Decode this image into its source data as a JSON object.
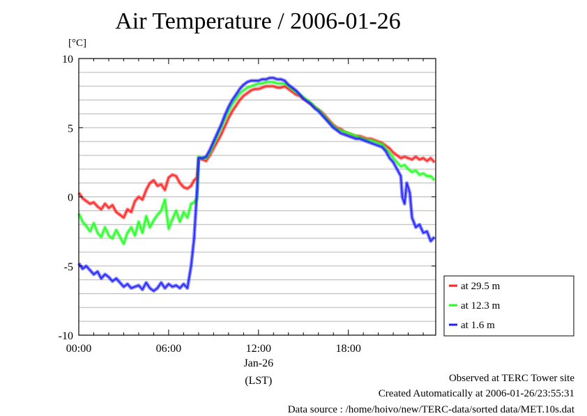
{
  "chart_data": {
    "type": "line",
    "title": "Air Temperature / 2006-01-26",
    "ylabel": "[°C]",
    "ylim": [
      -10,
      10
    ],
    "yticks": [
      10,
      5,
      0,
      -5,
      -10
    ],
    "xlim": [
      0,
      23.833
    ],
    "xticks": [
      {
        "value": 0,
        "label": "00:00"
      },
      {
        "value": 6,
        "label": "06:00"
      },
      {
        "value": 12,
        "label": "12:00"
      },
      {
        "value": 18,
        "label": "18:00"
      }
    ],
    "x_date_label": "Jan-26",
    "x_axis_label": "(LST)",
    "x_unit": "hour of day",
    "grid": true,
    "legend_position": "right",
    "series": [
      {
        "name": "at 29.5 m",
        "color": "#ff2020",
        "x": [
          0,
          0.25,
          0.5,
          0.75,
          1,
          1.25,
          1.5,
          1.75,
          2,
          2.25,
          2.5,
          2.75,
          3,
          3.25,
          3.5,
          3.75,
          4,
          4.25,
          4.5,
          4.75,
          5,
          5.25,
          5.5,
          5.75,
          6,
          6.25,
          6.5,
          6.75,
          7,
          7.25,
          7.5,
          7.7,
          7.9,
          8,
          8.25,
          8.5,
          8.75,
          9,
          9.25,
          9.5,
          9.75,
          10,
          10.25,
          10.5,
          10.75,
          11,
          11.25,
          11.5,
          11.75,
          12,
          12.25,
          12.5,
          12.75,
          13,
          13.25,
          13.5,
          13.75,
          14,
          14.25,
          14.5,
          14.75,
          15,
          15.25,
          15.5,
          15.75,
          16,
          16.25,
          16.5,
          16.75,
          17,
          17.25,
          17.5,
          17.75,
          18,
          18.25,
          18.5,
          18.75,
          19,
          19.25,
          19.5,
          19.75,
          20,
          20.25,
          20.5,
          20.75,
          21,
          21.25,
          21.5,
          21.75,
          22,
          22.25,
          22.5,
          22.75,
          23,
          23.25,
          23.5,
          23.75
        ],
        "values": [
          0.3,
          -0.1,
          -0.3,
          -0.5,
          -0.4,
          -0.7,
          -0.9,
          -0.5,
          -0.8,
          -0.6,
          -1.1,
          -1.3,
          -1.5,
          -0.9,
          -1.1,
          -0.3,
          0.0,
          -0.2,
          0.5,
          1.0,
          1.2,
          0.8,
          0.9,
          0.5,
          1.4,
          1.6,
          1.5,
          1.0,
          0.7,
          0.6,
          0.8,
          1.2,
          1.4,
          2.8,
          2.7,
          2.6,
          3.0,
          3.5,
          4.0,
          4.5,
          5.1,
          5.7,
          6.2,
          6.6,
          7.0,
          7.3,
          7.5,
          7.7,
          7.8,
          7.8,
          7.9,
          8.0,
          8.0,
          8.0,
          7.9,
          7.9,
          8.0,
          7.8,
          7.6,
          7.4,
          7.3,
          7.1,
          6.9,
          6.7,
          6.5,
          6.3,
          6.1,
          5.8,
          5.5,
          5.2,
          5.0,
          4.9,
          4.7,
          4.6,
          4.5,
          4.4,
          4.4,
          4.3,
          4.2,
          4.2,
          4.1,
          4.0,
          3.9,
          3.7,
          3.5,
          3.2,
          3.0,
          2.8,
          2.9,
          2.8,
          2.7,
          2.9,
          2.7,
          2.8,
          2.6,
          2.8,
          2.5
        ]
      },
      {
        "name": "at 12.3 m",
        "color": "#20ff20",
        "x": [
          0,
          0.25,
          0.5,
          0.75,
          1,
          1.25,
          1.5,
          1.75,
          2,
          2.25,
          2.5,
          2.75,
          3,
          3.25,
          3.5,
          3.75,
          4,
          4.25,
          4.5,
          4.75,
          5,
          5.25,
          5.5,
          5.75,
          6,
          6.25,
          6.5,
          6.75,
          7,
          7.25,
          7.5,
          7.7,
          7.9,
          8,
          8.25,
          8.5,
          8.75,
          9,
          9.25,
          9.5,
          9.75,
          10,
          10.25,
          10.5,
          10.75,
          11,
          11.25,
          11.5,
          11.75,
          12,
          12.25,
          12.5,
          12.75,
          13,
          13.25,
          13.5,
          13.75,
          14,
          14.25,
          14.5,
          14.75,
          15,
          15.25,
          15.5,
          15.75,
          16,
          16.25,
          16.5,
          16.75,
          17,
          17.25,
          17.5,
          17.75,
          18,
          18.25,
          18.5,
          18.75,
          19,
          19.25,
          19.5,
          19.75,
          20,
          20.25,
          20.5,
          20.75,
          21,
          21.25,
          21.5,
          21.75,
          22,
          22.25,
          22.5,
          22.75,
          23,
          23.25,
          23.5,
          23.75
        ],
        "values": [
          -1.2,
          -1.8,
          -2.1,
          -2.5,
          -1.9,
          -2.6,
          -2.9,
          -2.2,
          -2.8,
          -3.0,
          -2.4,
          -2.9,
          -3.4,
          -2.6,
          -2.2,
          -2.8,
          -1.8,
          -2.6,
          -1.4,
          -2.2,
          -1.7,
          -1.3,
          -1.0,
          -0.2,
          -2.3,
          -1.6,
          -1.0,
          -1.8,
          -1.1,
          -1.5,
          -0.5,
          -0.4,
          -0.1,
          2.9,
          2.8,
          2.8,
          3.2,
          3.8,
          4.4,
          5.0,
          5.6,
          6.2,
          6.7,
          7.1,
          7.5,
          7.7,
          7.9,
          8.0,
          8.1,
          8.2,
          8.2,
          8.3,
          8.3,
          8.3,
          8.2,
          8.2,
          8.2,
          8.0,
          7.8,
          7.6,
          7.4,
          7.2,
          7.0,
          6.8,
          6.5,
          6.3,
          6.0,
          5.7,
          5.4,
          5.1,
          4.9,
          4.8,
          4.7,
          4.6,
          4.5,
          4.4,
          4.3,
          4.2,
          4.1,
          4.1,
          4.0,
          3.9,
          3.8,
          3.5,
          3.2,
          2.8,
          2.5,
          2.2,
          2.3,
          2.0,
          1.8,
          1.9,
          1.6,
          1.7,
          1.5,
          1.5,
          1.2
        ]
      },
      {
        "name": "at 1.6 m",
        "color": "#2020ff",
        "x": [
          0,
          0.25,
          0.5,
          0.75,
          1,
          1.25,
          1.5,
          1.75,
          2,
          2.25,
          2.5,
          2.75,
          3,
          3.25,
          3.5,
          3.75,
          4,
          4.25,
          4.5,
          4.75,
          5,
          5.25,
          5.5,
          5.75,
          6,
          6.25,
          6.5,
          6.75,
          7,
          7.25,
          7.5,
          7.7,
          7.9,
          8,
          8.25,
          8.5,
          8.75,
          9,
          9.25,
          9.5,
          9.75,
          10,
          10.25,
          10.5,
          10.75,
          11,
          11.25,
          11.5,
          11.75,
          12,
          12.25,
          12.5,
          12.75,
          13,
          13.25,
          13.5,
          13.75,
          14,
          14.25,
          14.5,
          14.75,
          15,
          15.25,
          15.5,
          15.75,
          16,
          16.25,
          16.5,
          16.75,
          17,
          17.25,
          17.5,
          17.75,
          18,
          18.25,
          18.5,
          18.75,
          19,
          19.25,
          19.5,
          19.75,
          20,
          20.25,
          20.5,
          20.75,
          21,
          21.25,
          21.5,
          21.6,
          21.75,
          21.9,
          22.1,
          22.25,
          22.5,
          22.75,
          23,
          23.25,
          23.5,
          23.75
        ],
        "values": [
          -4.8,
          -5.2,
          -5.0,
          -5.3,
          -5.6,
          -5.4,
          -5.9,
          -5.6,
          -5.8,
          -6.1,
          -5.9,
          -6.2,
          -6.5,
          -6.3,
          -6.6,
          -6.5,
          -6.4,
          -6.7,
          -6.2,
          -6.6,
          -6.8,
          -6.6,
          -6.2,
          -6.6,
          -6.3,
          -6.5,
          -6.4,
          -6.6,
          -6.3,
          -6.6,
          -5.0,
          -3.0,
          0.5,
          2.8,
          2.8,
          2.9,
          3.4,
          4.0,
          4.6,
          5.2,
          5.9,
          6.5,
          7.0,
          7.4,
          7.8,
          8.1,
          8.3,
          8.4,
          8.4,
          8.4,
          8.5,
          8.5,
          8.6,
          8.6,
          8.5,
          8.5,
          8.4,
          8.1,
          7.9,
          7.7,
          7.4,
          7.1,
          6.9,
          6.7,
          6.4,
          6.2,
          5.9,
          5.6,
          5.3,
          5.0,
          4.8,
          4.6,
          4.5,
          4.4,
          4.3,
          4.2,
          4.2,
          4.1,
          4.0,
          3.9,
          3.8,
          3.7,
          3.6,
          3.3,
          2.8,
          2.5,
          2.0,
          1.5,
          0.0,
          -0.5,
          1.0,
          0.3,
          -1.5,
          -2.2,
          -2.0,
          -2.6,
          -2.5,
          -3.2,
          -2.9
        ]
      }
    ]
  },
  "annotations": {
    "site": "Observed at TERC Tower site",
    "created": "Created Automatically at 2006-01-26/23:55:31",
    "source": "Data source : /home/hoivo/new/TERC-data/sorted  data/MET.10s.dat"
  }
}
